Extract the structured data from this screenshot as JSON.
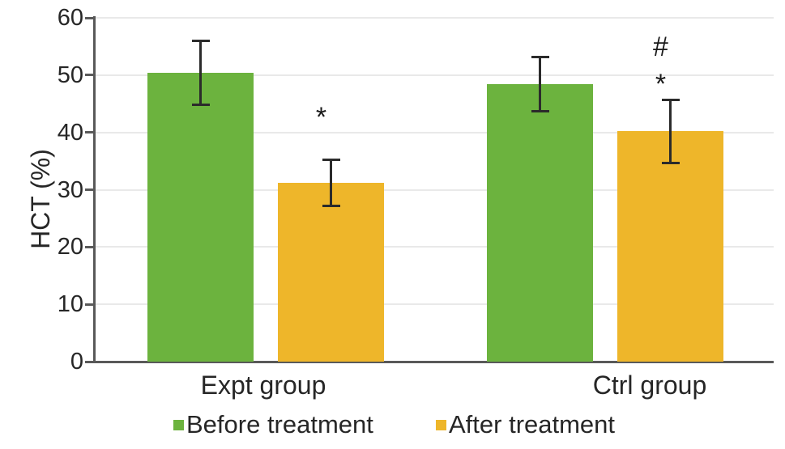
{
  "chart_data": {
    "type": "bar",
    "title": "",
    "xlabel": "",
    "ylabel": "HCT (%)",
    "ylim": [
      0,
      60
    ],
    "yticks": [
      0,
      10,
      20,
      30,
      40,
      50,
      60
    ],
    "grid": true,
    "legend_position": "bottom-center",
    "categories": [
      "Expt group",
      "Ctrl group"
    ],
    "series": [
      {
        "name": "Before treatment",
        "color": "#6CB33E",
        "values": [
          50.4,
          48.4
        ],
        "errors": [
          5.8,
          4.9
        ]
      },
      {
        "name": "After treatment",
        "color": "#EEB62A",
        "values": [
          31.2,
          40.2
        ],
        "errors": [
          4.2,
          5.7
        ]
      }
    ],
    "significance_markers": [
      {
        "group": "Expt group",
        "series": "After treatment",
        "symbols": [
          "*"
        ]
      },
      {
        "group": "Ctrl group",
        "series": "After treatment",
        "symbols": [
          "#",
          "*"
        ]
      }
    ],
    "colors": {
      "axis": "#595959",
      "gridline": "#e9e9e9",
      "error_bar": "#2b2b2b",
      "text": "#262626"
    }
  }
}
